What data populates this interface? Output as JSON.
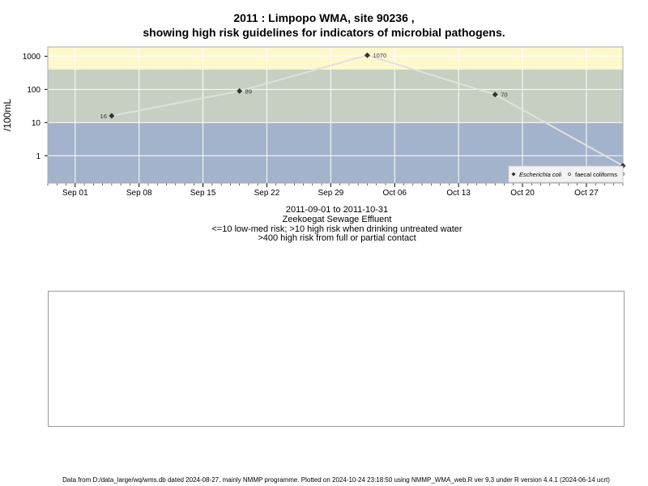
{
  "title_line1": "2011 : Limpopo WMA, site 90236 ,",
  "title_line2": "showing high risk guidelines for indicators of microbial pathogens.",
  "subtitle_lines": [
    "2011-09-01 to 2011-10-31",
    "Zeekoegat Sewage Effluent",
    "<=10 low-med risk; >10 high risk when drinking untreated water",
    ">400 high risk from full or partial contact"
  ],
  "footer": "Data from D:/data_large/wq/wms.db dated 2024-08-27, mainly NMMP programme. Plotted on 2024-10-24 23:18:50 using NMMP_WMA_web.R ver 9.3 under R version 4.4.1 (2024-06-14 ucrt)",
  "chart_data": {
    "type": "line",
    "ylabel": "/100mL",
    "y_scale": "log",
    "ylim": [
      0.15,
      1900
    ],
    "xlim": [
      "2011-08-29",
      "2011-10-31"
    ],
    "x_ticks": [
      "Sep 01",
      "Sep 08",
      "Sep 15",
      "Sep 22",
      "Sep 29",
      "Oct 06",
      "Oct 13",
      "Oct 20",
      "Oct 27"
    ],
    "x_tick_dates": [
      "2011-09-01",
      "2011-09-08",
      "2011-09-15",
      "2011-09-22",
      "2011-09-29",
      "2011-10-06",
      "2011-10-13",
      "2011-10-20",
      "2011-10-27"
    ],
    "y_ticks": [
      "1",
      "10",
      "100",
      "1000"
    ],
    "y_tick_values": [
      1,
      10,
      100,
      1000
    ],
    "risk_bands": [
      {
        "from": 0.15,
        "to": 10,
        "color": "#a3b3cc"
      },
      {
        "from": 10,
        "to": 400,
        "color": "#c6cfc1"
      },
      {
        "from": 400,
        "to": 1900,
        "color": "#fff8cc"
      }
    ],
    "grid": true,
    "legend_position": "bottom-right",
    "series": [
      {
        "name": "Escherichia coli",
        "marker": "diamond",
        "color": "#333333",
        "line_color": "#e0e0e0",
        "points": [
          {
            "x": "2011-09-05",
            "y": 16,
            "label": "16",
            "label_side": "left"
          },
          {
            "x": "2011-09-19",
            "y": 89,
            "label": "89",
            "label_side": "right"
          },
          {
            "x": "2011-10-03",
            "y": 1070,
            "label": "1070",
            "label_side": "right"
          },
          {
            "x": "2011-10-17",
            "y": 70,
            "label": "70",
            "label_side": "right"
          },
          {
            "x": "2011-10-31",
            "y": 0.5,
            "label": "",
            "label_side": "right"
          }
        ]
      },
      {
        "name": "faecal coliforms",
        "marker": "circle",
        "color": "#555555",
        "line_color": "#e0e0e0",
        "points": [
          {
            "x": "2011-10-31",
            "y": 0.28,
            "label": "",
            "label_side": "right"
          }
        ]
      }
    ]
  }
}
